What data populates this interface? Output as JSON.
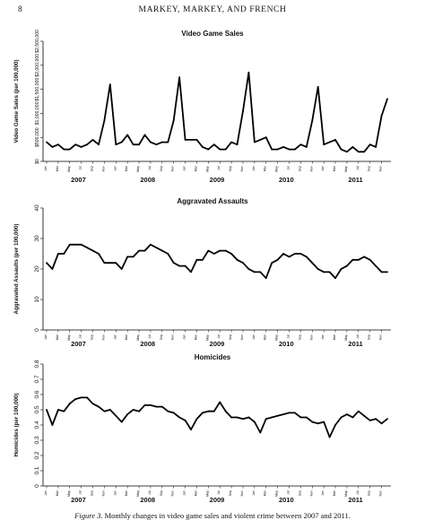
{
  "header": {
    "page_number": "8",
    "authors": "MARKEY, MARKEY, AND FRENCH"
  },
  "caption": {
    "figure_label": "Figure 3.",
    "text": "Monthly changes in video game sales and violent crime between 2007 and 2011."
  },
  "chart_data": [
    {
      "type": "line",
      "title": "Video Game Sales",
      "ylabel": "Video Game Sales (per 100,000)",
      "ylim": [
        0,
        2500000
      ],
      "yticks": [
        0,
        500000,
        1000000,
        1500000,
        2000000,
        2500000
      ],
      "ytick_labels": [
        "$0",
        "$500,000",
        "$1,000,000",
        "$1,500,000",
        "$2,000,000",
        "$2,500,000"
      ],
      "month_labels": [
        "Jan",
        "Mar",
        "May",
        "Jul",
        "Sep",
        "Nov"
      ],
      "year_labels": [
        "2007",
        "2008",
        "2009",
        "2010",
        "2011"
      ],
      "values": [
        400000,
        300000,
        350000,
        250000,
        250000,
        350000,
        300000,
        350000,
        450000,
        350000,
        850000,
        1600000,
        350000,
        400000,
        550000,
        350000,
        350000,
        550000,
        400000,
        350000,
        400000,
        400000,
        850000,
        1750000,
        450000,
        450000,
        450000,
        300000,
        250000,
        350000,
        250000,
        250000,
        400000,
        350000,
        1050000,
        1850000,
        400000,
        450000,
        500000,
        250000,
        250000,
        300000,
        250000,
        250000,
        350000,
        300000,
        850000,
        1550000,
        350000,
        400000,
        450000,
        250000,
        200000,
        300000,
        200000,
        200000,
        350000,
        300000,
        950000,
        1300000
      ]
    },
    {
      "type": "line",
      "title": "Aggravated Assaults",
      "ylabel": "Aggravated Assaults (per 100,000)",
      "ylim": [
        0,
        40
      ],
      "yticks": [
        0,
        10,
        20,
        30,
        40
      ],
      "ytick_labels": [
        "0",
        "10",
        "20",
        "30",
        "40"
      ],
      "month_labels": [
        "Jan",
        "Mar",
        "May",
        "Jul",
        "Sep",
        "Nov"
      ],
      "year_labels": [
        "2007",
        "2008",
        "2009",
        "2010",
        "2011"
      ],
      "values": [
        22,
        20,
        25,
        25,
        28,
        28,
        28,
        27,
        26,
        25,
        22,
        22,
        22,
        20,
        24,
        24,
        26,
        26,
        28,
        27,
        26,
        25,
        22,
        21,
        21,
        19,
        23,
        23,
        26,
        25,
        26,
        26,
        25,
        23,
        22,
        20,
        19,
        19,
        17,
        22,
        23,
        25,
        24,
        25,
        25,
        24,
        22,
        20,
        19,
        19,
        17,
        20,
        21,
        23,
        23,
        24,
        23,
        21,
        19,
        19
      ]
    },
    {
      "type": "line",
      "title": "Homicides",
      "ylabel": "Homicides (per 100,000)",
      "ylim": [
        0,
        0.8
      ],
      "yticks": [
        0,
        0.1,
        0.2,
        0.3,
        0.4,
        0.5,
        0.6,
        0.7,
        0.8
      ],
      "ytick_labels": [
        "0",
        "0.1",
        "0.2",
        "0.3",
        "0.4",
        "0.5",
        "0.6",
        "0.7",
        "0.8"
      ],
      "month_labels": [
        "Jan",
        "Mar",
        "May",
        "Jul",
        "Sep",
        "Nov"
      ],
      "year_labels": [
        "2007",
        "2008",
        "2009",
        "2010",
        "2011"
      ],
      "values": [
        0.5,
        0.4,
        0.5,
        0.49,
        0.54,
        0.57,
        0.58,
        0.58,
        0.54,
        0.52,
        0.49,
        0.5,
        0.46,
        0.42,
        0.47,
        0.5,
        0.49,
        0.53,
        0.53,
        0.52,
        0.52,
        0.49,
        0.48,
        0.45,
        0.43,
        0.37,
        0.44,
        0.48,
        0.49,
        0.49,
        0.55,
        0.49,
        0.45,
        0.45,
        0.44,
        0.45,
        0.42,
        0.35,
        0.44,
        0.45,
        0.46,
        0.47,
        0.48,
        0.48,
        0.45,
        0.45,
        0.42,
        0.41,
        0.42,
        0.32,
        0.4,
        0.45,
        0.47,
        0.45,
        0.49,
        0.46,
        0.43,
        0.44,
        0.41,
        0.44
      ]
    }
  ]
}
